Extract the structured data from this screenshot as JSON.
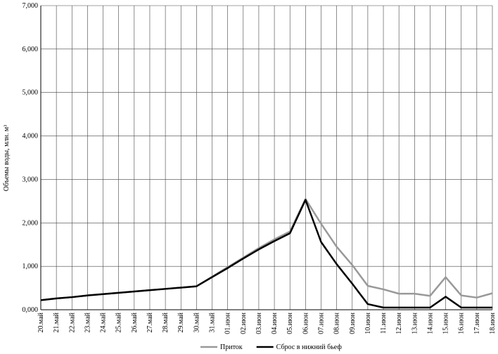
{
  "chart_data": {
    "type": "line",
    "y_label": "Объемы воды, млн. м³",
    "categories": [
      "20.май",
      "21.май",
      "22.май",
      "23.май",
      "24.май",
      "25.май",
      "26.май",
      "27.май",
      "28.май",
      "29.май",
      "30.май",
      "31.май",
      "01.июн",
      "02.июн",
      "03.июн",
      "04.июн",
      "05.июн",
      "06.июн",
      "07.июн",
      "08.июн",
      "09.июн",
      "10.июн",
      "11.июн",
      "12.июн",
      "13.июн",
      "14.июн",
      "15.июн",
      "16.июн",
      "17.июн",
      "18.июн"
    ],
    "series": [
      {
        "name": "Приток",
        "color": "#999999",
        "values": [
          220,
          260,
          290,
          330,
          360,
          390,
          420,
          450,
          480,
          510,
          540,
          760,
          980,
          1200,
          1420,
          1620,
          1800,
          2550,
          1980,
          1450,
          1030,
          550,
          470,
          370,
          370,
          320,
          750,
          330,
          280,
          380
        ]
      },
      {
        "name": "Сброс в нижний бьеф",
        "color": "#000000",
        "values": [
          220,
          260,
          290,
          330,
          360,
          390,
          420,
          450,
          480,
          510,
          540,
          750,
          960,
          1180,
          1390,
          1580,
          1760,
          2530,
          1560,
          1050,
          600,
          130,
          50,
          50,
          50,
          50,
          300,
          50,
          50,
          50
        ]
      }
    ],
    "ylim": [
      0,
      7000
    ],
    "yticks": [
      {
        "value": 0,
        "label": "0,000"
      },
      {
        "value": 1000,
        "label": "1,000"
      },
      {
        "value": 2000,
        "label": "2,000"
      },
      {
        "value": 3000,
        "label": "3,000"
      },
      {
        "value": 4000,
        "label": "4,000"
      },
      {
        "value": 5000,
        "label": "5,000"
      },
      {
        "value": 6000,
        "label": "6,000"
      },
      {
        "value": 7000,
        "label": "7,000"
      }
    ],
    "grid": true,
    "legend": "bottom"
  }
}
